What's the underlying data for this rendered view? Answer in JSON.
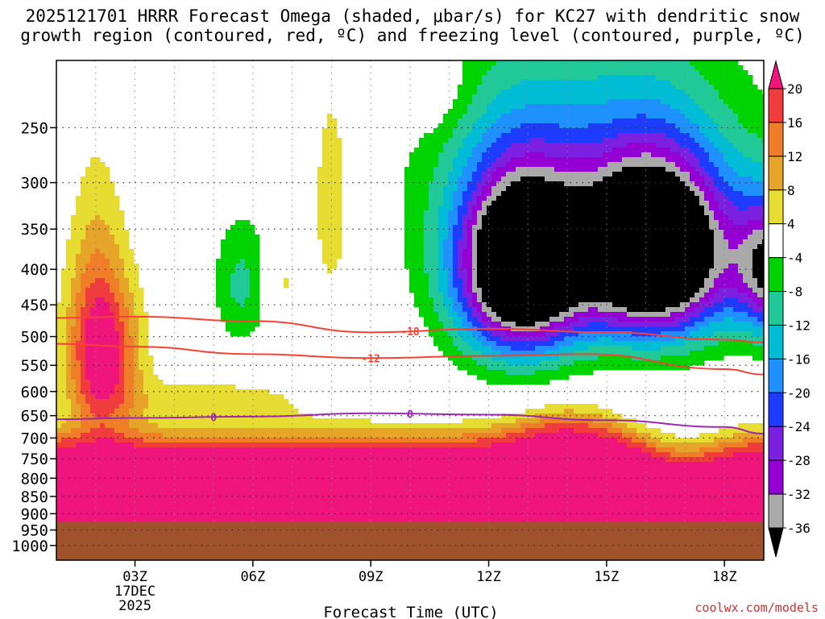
{
  "title": "2025121701 HRRR Forecast Omega (shaded, μbar/s) for KC27 with dendritic snow\ngrowth region (contoured, red, ºC) and freezing level (contoured, purple, ºC)",
  "credit": "coolwx.com/models",
  "colors": {
    "terrain": "#a0522d",
    "dendritic_contour": "#f44336",
    "freezing_contour": "#9c27b0"
  },
  "chart_data": {
    "type": "heatmap",
    "xlabel": "Forecast Time (UTC)",
    "ylabel": "",
    "x_range_hours": [
      1,
      19
    ],
    "y_range_hPa": [
      200,
      1050
    ],
    "x_ticks": [
      {
        "h": 3,
        "label": "03Z",
        "sub": [
          "17DEC",
          "2025"
        ]
      },
      {
        "h": 6,
        "label": "06Z"
      },
      {
        "h": 9,
        "label": "09Z"
      },
      {
        "h": 12,
        "label": "12Z"
      },
      {
        "h": 15,
        "label": "15Z"
      },
      {
        "h": 18,
        "label": "18Z"
      }
    ],
    "y_ticks": [
      250,
      300,
      350,
      400,
      450,
      500,
      550,
      600,
      650,
      700,
      750,
      800,
      850,
      900,
      950,
      1000
    ],
    "surface_pressure_hPa": 925,
    "colorbar": {
      "levels": [
        -36,
        -32,
        -28,
        -24,
        -20,
        -16,
        -12,
        -8,
        -4,
        4,
        8,
        12,
        16,
        20
      ],
      "colors": [
        "#000000",
        "#a9a9a9",
        "#9400d3",
        "#7b1fe0",
        "#1e3cff",
        "#1e90ff",
        "#00bcd4",
        "#20c997",
        "#00d400",
        "#ffffff",
        "#e6dc32",
        "#e6a528",
        "#f07d28",
        "#f03c3c",
        "#f0147d"
      ]
    },
    "contours": [
      {
        "color": "dendritic",
        "label": "-18",
        "points": [
          [
            1,
            470
          ],
          [
            3,
            468
          ],
          [
            6,
            475
          ],
          [
            9,
            493
          ],
          [
            12,
            487
          ],
          [
            15,
            493
          ],
          [
            18,
            505
          ],
          [
            19,
            510
          ]
        ]
      },
      {
        "color": "dendritic",
        "label": "-12",
        "points": [
          [
            1,
            512
          ],
          [
            3,
            517
          ],
          [
            6,
            530
          ],
          [
            9,
            537
          ],
          [
            12,
            533
          ],
          [
            14.5,
            530
          ],
          [
            18,
            557
          ],
          [
            19,
            567
          ]
        ]
      },
      {
        "color": "freezing",
        "label": "0",
        "points": [
          [
            1,
            658
          ],
          [
            3,
            655
          ],
          [
            6,
            652
          ],
          [
            9,
            645
          ],
          [
            12,
            648
          ],
          [
            15,
            660
          ],
          [
            18,
            675
          ],
          [
            19,
            690
          ]
        ]
      }
    ]
  }
}
